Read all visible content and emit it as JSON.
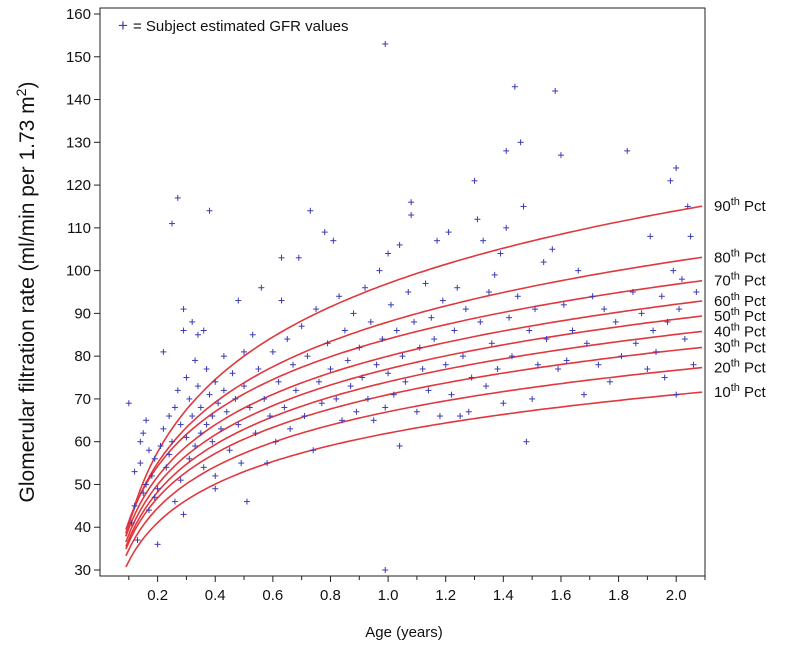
{
  "chart_data": {
    "type": "scatter",
    "title": "",
    "xlabel": "Age (years)",
    "ylabel": "Glomerular filtration rate (ml/min per 1.73 m",
    "ylabel_sup": "2",
    "ylabel_close": ")",
    "xlim": [
      0.0,
      2.1
    ],
    "ylim": [
      30,
      160
    ],
    "xticks": [
      "0.2",
      "0.4",
      "0.6",
      "0.8",
      "1.0",
      "1.2",
      "1.4",
      "1.6",
      "1.8",
      "2.0"
    ],
    "yticks": [
      "30",
      "40",
      "50",
      "60",
      "70",
      "80",
      "90",
      "100",
      "110",
      "120",
      "130",
      "140",
      "150",
      "160"
    ],
    "grid": false,
    "legend": {
      "position": "top-left",
      "marker": "+",
      "label": "= Subject estimated GFR values"
    },
    "percentile_curves": [
      {
        "num": "90",
        "sup": "th",
        "suffix": " Pct",
        "a": 97,
        "b": 24.5
      },
      {
        "num": "80",
        "sup": "th",
        "suffix": " Pct",
        "a": 88,
        "b": 20.5
      },
      {
        "num": "70",
        "sup": "th",
        "suffix": " Pct",
        "a": 84,
        "b": 18.5
      },
      {
        "num": "60",
        "sup": "th",
        "suffix": " Pct",
        "a": 80,
        "b": 17.5
      },
      {
        "num": "50",
        "sup": "th",
        "suffix": " Pct",
        "a": 77,
        "b": 16.8
      },
      {
        "num": "40",
        "sup": "th",
        "suffix": " Pct",
        "a": 74,
        "b": 16.0
      },
      {
        "num": "30",
        "sup": "th",
        "suffix": " Pct",
        "a": 71,
        "b": 15.0
      },
      {
        "num": "20",
        "sup": "th",
        "suffix": " Pct",
        "a": 67,
        "b": 14.0
      },
      {
        "num": "10",
        "sup": "th",
        "suffix": " Pct",
        "a": 62,
        "b": 13.0
      }
    ],
    "points": [
      [
        0.1,
        69
      ],
      [
        0.11,
        41
      ],
      [
        0.12,
        45
      ],
      [
        0.12,
        53
      ],
      [
        0.13,
        37
      ],
      [
        0.14,
        55
      ],
      [
        0.14,
        60
      ],
      [
        0.15,
        48
      ],
      [
        0.15,
        62
      ],
      [
        0.16,
        50
      ],
      [
        0.16,
        65
      ],
      [
        0.17,
        44
      ],
      [
        0.17,
        58
      ],
      [
        0.18,
        52
      ],
      [
        0.19,
        56
      ],
      [
        0.19,
        47
      ],
      [
        0.2,
        36
      ],
      [
        0.2,
        49
      ],
      [
        0.21,
        59
      ],
      [
        0.22,
        81
      ],
      [
        0.22,
        63
      ],
      [
        0.23,
        54
      ],
      [
        0.24,
        66
      ],
      [
        0.24,
        57
      ],
      [
        0.25,
        111
      ],
      [
        0.25,
        60
      ],
      [
        0.26,
        68
      ],
      [
        0.26,
        46
      ],
      [
        0.27,
        117
      ],
      [
        0.27,
        72
      ],
      [
        0.28,
        64
      ],
      [
        0.28,
        51
      ],
      [
        0.29,
        91
      ],
      [
        0.29,
        86
      ],
      [
        0.29,
        43
      ],
      [
        0.3,
        75
      ],
      [
        0.3,
        61
      ],
      [
        0.31,
        70
      ],
      [
        0.31,
        56
      ],
      [
        0.32,
        88
      ],
      [
        0.32,
        66
      ],
      [
        0.33,
        79
      ],
      [
        0.33,
        59
      ],
      [
        0.34,
        73
      ],
      [
        0.34,
        85
      ],
      [
        0.35,
        62
      ],
      [
        0.35,
        68
      ],
      [
        0.36,
        86
      ],
      [
        0.36,
        54
      ],
      [
        0.37,
        77
      ],
      [
        0.37,
        64
      ],
      [
        0.38,
        114
      ],
      [
        0.38,
        71
      ],
      [
        0.39,
        60
      ],
      [
        0.39,
        66
      ],
      [
        0.4,
        52
      ],
      [
        0.4,
        49
      ],
      [
        0.4,
        74
      ],
      [
        0.41,
        69
      ],
      [
        0.42,
        63
      ],
      [
        0.43,
        80
      ],
      [
        0.43,
        72
      ],
      [
        0.44,
        67
      ],
      [
        0.45,
        58
      ],
      [
        0.46,
        76
      ],
      [
        0.47,
        70
      ],
      [
        0.48,
        93
      ],
      [
        0.48,
        64
      ],
      [
        0.49,
        55
      ],
      [
        0.5,
        81
      ],
      [
        0.5,
        73
      ],
      [
        0.51,
        46
      ],
      [
        0.52,
        68
      ],
      [
        0.53,
        85
      ],
      [
        0.54,
        62
      ],
      [
        0.55,
        77
      ],
      [
        0.56,
        96
      ],
      [
        0.57,
        70
      ],
      [
        0.58,
        55
      ],
      [
        0.59,
        66
      ],
      [
        0.6,
        81
      ],
      [
        0.61,
        60
      ],
      [
        0.62,
        74
      ],
      [
        0.63,
        103
      ],
      [
        0.63,
        93
      ],
      [
        0.64,
        68
      ],
      [
        0.65,
        84
      ],
      [
        0.66,
        63
      ],
      [
        0.67,
        78
      ],
      [
        0.68,
        72
      ],
      [
        0.69,
        103
      ],
      [
        0.7,
        87
      ],
      [
        0.71,
        66
      ],
      [
        0.72,
        80
      ],
      [
        0.73,
        114
      ],
      [
        0.74,
        58
      ],
      [
        0.75,
        91
      ],
      [
        0.76,
        74
      ],
      [
        0.77,
        69
      ],
      [
        0.78,
        109
      ],
      [
        0.79,
        83
      ],
      [
        0.8,
        77
      ],
      [
        0.81,
        107
      ],
      [
        0.82,
        70
      ],
      [
        0.83,
        94
      ],
      [
        0.84,
        65
      ],
      [
        0.85,
        86
      ],
      [
        0.86,
        79
      ],
      [
        0.87,
        73
      ],
      [
        0.88,
        90
      ],
      [
        0.89,
        67
      ],
      [
        0.9,
        82
      ],
      [
        0.91,
        75
      ],
      [
        0.92,
        96
      ],
      [
        0.93,
        70
      ],
      [
        0.94,
        88
      ],
      [
        0.95,
        65
      ],
      [
        0.96,
        78
      ],
      [
        0.97,
        100
      ],
      [
        0.98,
        84
      ],
      [
        0.99,
        68
      ],
      [
        0.99,
        153
      ],
      [
        0.99,
        30
      ],
      [
        1.0,
        104
      ],
      [
        1.0,
        76
      ],
      [
        1.01,
        92
      ],
      [
        1.02,
        71
      ],
      [
        1.03,
        86
      ],
      [
        1.04,
        59
      ],
      [
        1.04,
        106
      ],
      [
        1.05,
        80
      ],
      [
        1.06,
        74
      ],
      [
        1.07,
        95
      ],
      [
        1.08,
        113
      ],
      [
        1.08,
        116
      ],
      [
        1.09,
        88
      ],
      [
        1.1,
        67
      ],
      [
        1.11,
        82
      ],
      [
        1.12,
        77
      ],
      [
        1.13,
        97
      ],
      [
        1.14,
        72
      ],
      [
        1.15,
        89
      ],
      [
        1.16,
        84
      ],
      [
        1.17,
        107
      ],
      [
        1.18,
        66
      ],
      [
        1.19,
        93
      ],
      [
        1.2,
        78
      ],
      [
        1.21,
        109
      ],
      [
        1.22,
        71
      ],
      [
        1.23,
        86
      ],
      [
        1.24,
        96
      ],
      [
        1.25,
        66
      ],
      [
        1.26,
        80
      ],
      [
        1.27,
        91
      ],
      [
        1.28,
        67
      ],
      [
        1.29,
        75
      ],
      [
        1.3,
        121
      ],
      [
        1.31,
        112
      ],
      [
        1.32,
        88
      ],
      [
        1.33,
        107
      ],
      [
        1.34,
        73
      ],
      [
        1.35,
        95
      ],
      [
        1.36,
        83
      ],
      [
        1.37,
        99
      ],
      [
        1.38,
        77
      ],
      [
        1.39,
        104
      ],
      [
        1.4,
        69
      ],
      [
        1.41,
        128
      ],
      [
        1.41,
        110
      ],
      [
        1.42,
        89
      ],
      [
        1.43,
        80
      ],
      [
        1.44,
        143
      ],
      [
        1.45,
        94
      ],
      [
        1.46,
        130
      ],
      [
        1.47,
        115
      ],
      [
        1.48,
        60
      ],
      [
        1.49,
        86
      ],
      [
        1.5,
        70
      ],
      [
        1.51,
        91
      ],
      [
        1.52,
        78
      ],
      [
        1.54,
        102
      ],
      [
        1.55,
        84
      ],
      [
        1.57,
        105
      ],
      [
        1.58,
        142
      ],
      [
        1.59,
        77
      ],
      [
        1.6,
        127
      ],
      [
        1.61,
        92
      ],
      [
        1.62,
        79
      ],
      [
        1.64,
        86
      ],
      [
        1.66,
        100
      ],
      [
        1.68,
        71
      ],
      [
        1.69,
        83
      ],
      [
        1.71,
        94
      ],
      [
        1.73,
        78
      ],
      [
        1.75,
        91
      ],
      [
        1.77,
        74
      ],
      [
        1.79,
        88
      ],
      [
        1.81,
        80
      ],
      [
        1.83,
        128
      ],
      [
        1.85,
        95
      ],
      [
        1.86,
        83
      ],
      [
        1.88,
        90
      ],
      [
        1.9,
        77
      ],
      [
        1.91,
        108
      ],
      [
        1.92,
        86
      ],
      [
        1.93,
        81
      ],
      [
        1.95,
        94
      ],
      [
        1.96,
        75
      ],
      [
        1.97,
        88
      ],
      [
        1.98,
        121
      ],
      [
        1.99,
        100
      ],
      [
        2.0,
        124
      ],
      [
        2.0,
        71
      ],
      [
        2.01,
        91
      ],
      [
        2.02,
        98
      ],
      [
        2.03,
        84
      ],
      [
        2.04,
        115
      ],
      [
        2.05,
        108
      ],
      [
        2.06,
        78
      ],
      [
        2.07,
        95
      ]
    ]
  }
}
